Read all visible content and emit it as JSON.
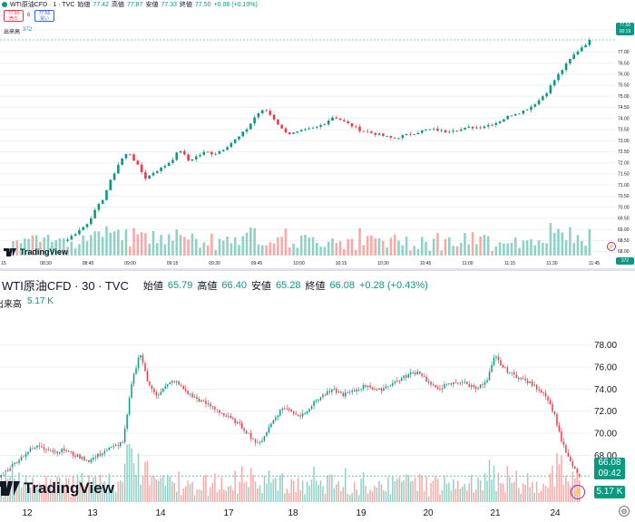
{
  "colors": {
    "up": "#089981",
    "down": "#f23645",
    "vol_up": "#8fd1c4",
    "vol_down": "#f7a9a7",
    "grid": "#eef0f4",
    "text": "#131722"
  },
  "top_panel": {
    "symbol": "WTI原油CFD · 1 · TVC",
    "legend": [
      {
        "k": "始値",
        "v": "77.42"
      },
      {
        "k": "高値",
        "v": "77.87"
      },
      {
        "k": "安値",
        "v": "77.33"
      },
      {
        "k": "終値",
        "v": "77.50"
      },
      {
        "k": "",
        "v": "+0.08 (+0.10%)"
      }
    ],
    "sell": {
      "price": "77.50",
      "label": "売り"
    },
    "spread": "6",
    "buy": {
      "price": "77.56",
      "label": "買い"
    },
    "volume_label": "出来高",
    "volume_value": "372",
    "price_tag": {
      "price": "77.50",
      "time": "00:19"
    },
    "vol_tag": "372",
    "y_ticks": [
      "78.00",
      "77.00",
      "76.50",
      "76.00",
      "75.50",
      "75.00",
      "74.50",
      "74.00",
      "73.50",
      "73.00",
      "72.50",
      "72.00",
      "71.50",
      "71.00",
      "70.50",
      "70.00",
      "69.50",
      "69.00",
      "68.50",
      "68.00"
    ],
    "x_ticks": [
      "15",
      "08:30",
      "08:45",
      "09:00",
      "09:15",
      "09:30",
      "09:45",
      "10:00",
      "10:15",
      "10:30",
      "10:45",
      "11:00",
      "11:15",
      "11:30",
      "11:45"
    ],
    "logo_text": "TradingView"
  },
  "bottom_panel": {
    "symbol": "WTI原油CFD · 30 · TVC",
    "legend": [
      {
        "k": "始値",
        "v": "65.79"
      },
      {
        "k": "高値",
        "v": "66.40"
      },
      {
        "k": "安値",
        "v": "65.28"
      },
      {
        "k": "終値",
        "v": "66.08"
      },
      {
        "k": "",
        "v": "+0.28 (+0.43%)"
      }
    ],
    "volume_label": "出来高",
    "volume_value": "5.17 K",
    "price_tag": {
      "price": "66.08",
      "time": "09:42"
    },
    "vol_tag": "5.17 K",
    "y_ticks": [
      "78.00",
      "76.00",
      "74.00",
      "72.00",
      "70.00",
      "68.00"
    ],
    "x_ticks": [
      "12",
      "13",
      "14",
      "17",
      "18",
      "19",
      "20",
      "21",
      "24"
    ],
    "logo_text": "TradingView"
  },
  "chart_data": [
    {
      "type": "candlestick",
      "title": "WTI原油CFD · 1 · TVC",
      "ylim": [
        67.9,
        78.2
      ],
      "close_path": [
        68.0,
        68.0,
        68.05,
        68.1,
        68.15,
        68.2,
        68.4,
        68.6,
        68.9,
        69.2,
        69.8,
        70.4,
        71.3,
        72.1,
        72.5,
        71.9,
        71.3,
        71.6,
        71.8,
        72.1,
        72.6,
        72.1,
        72.3,
        72.5,
        72.4,
        72.6,
        72.9,
        73.2,
        73.6,
        74.2,
        74.4,
        74.0,
        73.5,
        73.3,
        73.4,
        73.5,
        73.6,
        73.8,
        74.1,
        73.9,
        73.7,
        73.5,
        73.4,
        73.3,
        73.2,
        73.1,
        73.2,
        73.3,
        73.4,
        73.5,
        73.5,
        73.4,
        73.5,
        73.5,
        73.6,
        73.6,
        73.7,
        73.8,
        74.0,
        74.2,
        74.3,
        74.5,
        74.8,
        75.2,
        75.8,
        76.3,
        76.8,
        77.2,
        77.5
      ],
      "volume_note": "one volume bar per candle"
    },
    {
      "type": "candlestick",
      "title": "WTI原油CFD · 30 · TVC",
      "ylim": [
        65.0,
        78.8
      ],
      "close_path": [
        65.8,
        66.5,
        67.2,
        67.9,
        68.5,
        68.9,
        68.6,
        68.3,
        68.5,
        68.1,
        67.8,
        67.5,
        68.0,
        68.5,
        68.8,
        69.3,
        74.5,
        77.4,
        74.3,
        73.5,
        74.2,
        74.8,
        74.1,
        73.4,
        73.0,
        72.6,
        72.2,
        71.6,
        71.2,
        70.6,
        69.8,
        68.9,
        70.2,
        71.5,
        72.4,
        71.9,
        71.6,
        72.3,
        73.1,
        73.6,
        73.9,
        73.5,
        73.7,
        74.1,
        74.4,
        73.8,
        74.2,
        74.6,
        75.0,
        75.4,
        75.6,
        74.7,
        74.0,
        74.3,
        74.5,
        74.7,
        74.3,
        74.2,
        74.6,
        77.0,
        75.9,
        75.4,
        75.0,
        74.6,
        74.1,
        73.5,
        71.8,
        69.0,
        67.2,
        66.1
      ],
      "volume_note": "one volume bar per candle"
    }
  ]
}
